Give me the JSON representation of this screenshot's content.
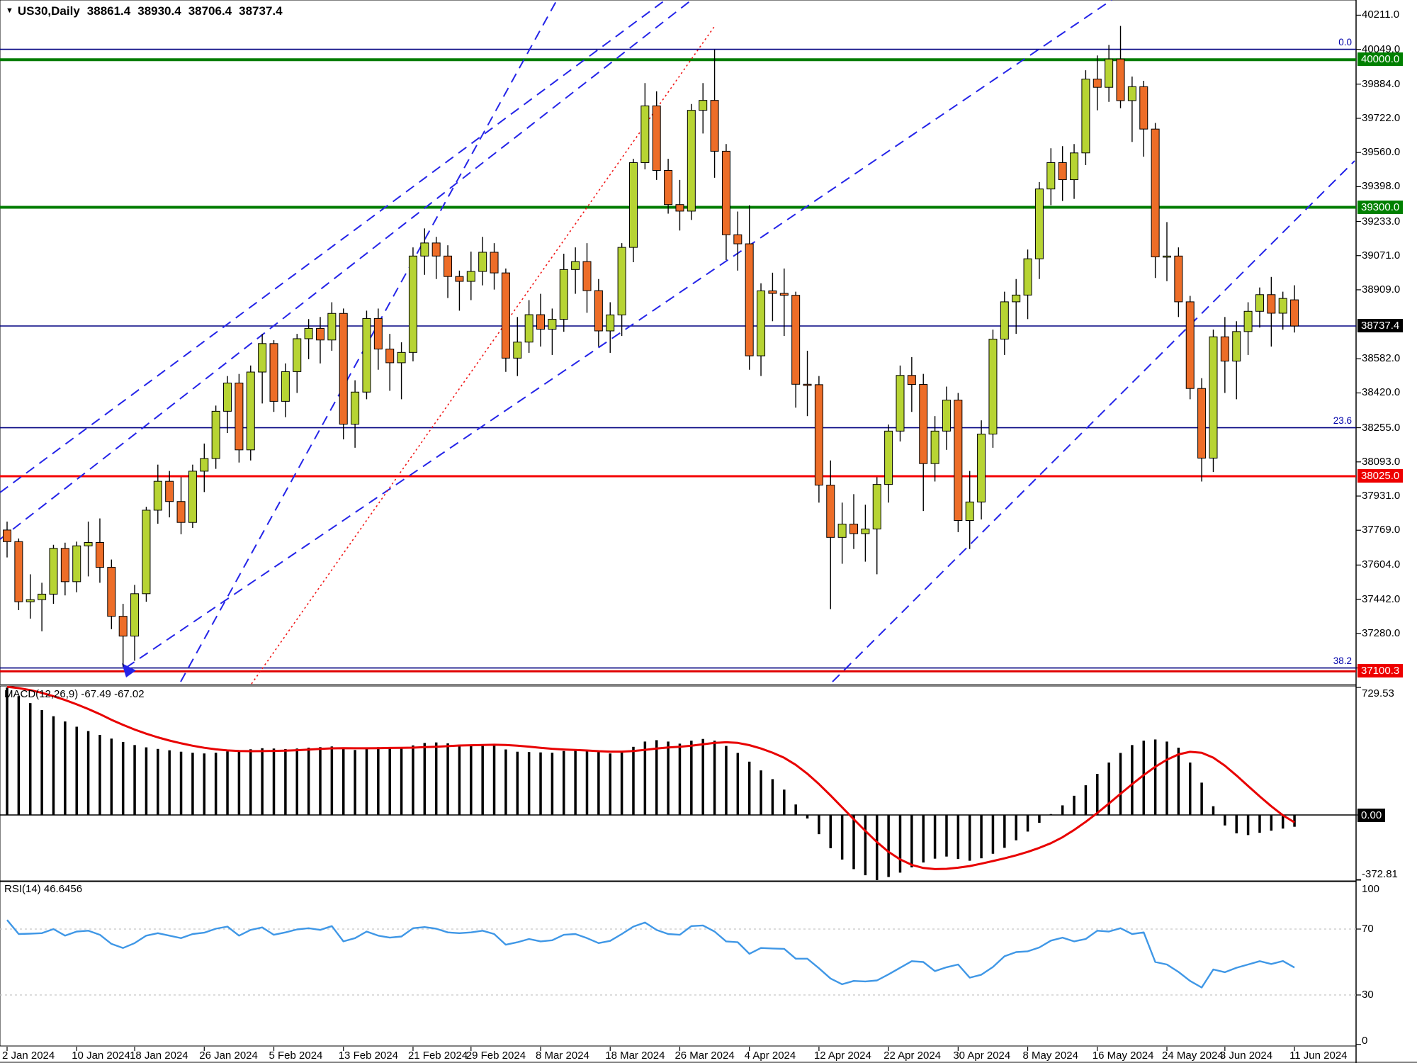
{
  "header": {
    "symbol": "US30,Daily",
    "open": "38861.4",
    "high": "38930.4",
    "low": "38706.4",
    "close": "38737.4"
  },
  "indicators": {
    "macd_label": "MACD(12,26,9) -67.49 -67.02",
    "rsi_label": "RSI(14) 46.6456"
  },
  "colors": {
    "bull": "#b7d433",
    "bear": "#ed6d28",
    "wick": "#000000",
    "macd_hist": "#000000",
    "macd_signal": "#e80000",
    "rsi_line": "#3f97e6",
    "trend_blue": "#2424e8",
    "trend_red": "#f01414",
    "level_navy": "#000080",
    "level_green": "#007c00",
    "level_red": "#f40000",
    "grid_dash": "#c8c8c8"
  },
  "chart_data": {
    "type": "candlestick",
    "symbol": "US30",
    "timeframe": "Daily",
    "price_axis": {
      "ticks": [
        {
          "text": "40211.0",
          "price": 40211
        },
        {
          "text": "40049.0",
          "price": 40049
        },
        {
          "text": "39884.0",
          "price": 39884
        },
        {
          "text": "39722.0",
          "price": 39722
        },
        {
          "text": "39560.0",
          "price": 39560
        },
        {
          "text": "39398.0",
          "price": 39398
        },
        {
          "text": "39233.0",
          "price": 39233
        },
        {
          "text": "39071.0",
          "price": 39071
        },
        {
          "text": "38909.0",
          "price": 38909
        },
        {
          "text": "38582.0",
          "price": 38582
        },
        {
          "text": "38420.0",
          "price": 38420
        },
        {
          "text": "38255.0",
          "price": 38255
        },
        {
          "text": "38093.0",
          "price": 38093
        },
        {
          "text": "37931.0",
          "price": 37931
        },
        {
          "text": "37769.0",
          "price": 37769
        },
        {
          "text": "37604.0",
          "price": 37604
        },
        {
          "text": "37442.0",
          "price": 37442
        },
        {
          "text": "37280.0",
          "price": 37280
        },
        {
          "text": "37116.0",
          "price": 37116
        }
      ],
      "highlighted": [
        {
          "text": "40000.0",
          "price": 40000,
          "bg": "#008000"
        },
        {
          "text": "39300.0",
          "price": 39300,
          "bg": "#008000"
        },
        {
          "text": "38737.4",
          "price": 38737.4,
          "bg": "#000000"
        },
        {
          "text": "38025.0",
          "price": 38025,
          "bg": "#ee0000"
        },
        {
          "text": "37100.3",
          "price": 37100.3,
          "bg": "#ee0000"
        }
      ]
    },
    "levels": [
      {
        "price": 40049.4,
        "color": "#000080",
        "w": 1.6
      },
      {
        "price": 40000.0,
        "color": "#007c00",
        "w": 4
      },
      {
        "price": 39300.0,
        "color": "#007c00",
        "w": 4
      },
      {
        "price": 38737.4,
        "color": "#000080",
        "w": 1.6
      },
      {
        "price": 38255.0,
        "color": "#000080",
        "w": 1.6
      },
      {
        "price": 38025.0,
        "color": "#f40000",
        "w": 3
      },
      {
        "price": 37116.0,
        "color": "#000080",
        "w": 1.6
      },
      {
        "price": 37100.3,
        "color": "#e00000",
        "w": 3
      }
    ],
    "fib_labels": [
      {
        "text": "0.0",
        "price": 40049.4
      },
      {
        "text": "23.6",
        "price": 38255.0
      },
      {
        "text": "38.2",
        "price": 37116.0
      }
    ],
    "trend_lines_blue_dashed": [
      [
        0,
        761,
        976,
        0
      ],
      [
        0,
        695,
        939,
        0
      ],
      [
        255,
        962,
        786,
        0
      ],
      [
        178,
        942,
        1569,
        0
      ],
      [
        1175,
        962,
        1912,
        227
      ]
    ],
    "trend_lines_red_dotted": [
      [
        355,
        965,
        1010,
        35
      ]
    ],
    "date_labels": [
      {
        "text": "2 Jan 2024",
        "i": 0
      },
      {
        "text": "10 Jan 2024",
        "i": 6
      },
      {
        "text": "18 Jan 2024",
        "i": 11
      },
      {
        "text": "26 Jan 2024",
        "i": 17
      },
      {
        "text": "5 Feb 2024",
        "i": 23
      },
      {
        "text": "13 Feb 2024",
        "i": 29
      },
      {
        "text": "21 Feb 2024",
        "i": 35
      },
      {
        "text": "29 Feb 2024",
        "i": 40
      },
      {
        "text": "8 Mar 2024",
        "i": 46
      },
      {
        "text": "18 Mar 2024",
        "i": 52
      },
      {
        "text": "26 Mar 2024",
        "i": 58
      },
      {
        "text": "4 Apr 2024",
        "i": 64
      },
      {
        "text": "12 Apr 2024",
        "i": 70
      },
      {
        "text": "22 Apr 2024",
        "i": 76
      },
      {
        "text": "30 Apr 2024",
        "i": 82
      },
      {
        "text": "8 May 2024",
        "i": 88
      },
      {
        "text": "16 May 2024",
        "i": 94
      },
      {
        "text": "24 May 2024",
        "i": 100
      },
      {
        "text": "3 Jun 2024",
        "i": 105
      },
      {
        "text": "11 Jun 2024",
        "i": 111
      }
    ],
    "bars_ohlc": [
      [
        37770,
        37810,
        37640,
        37715
      ],
      [
        37715,
        37730,
        37390,
        37430
      ],
      [
        37430,
        37560,
        37350,
        37440
      ],
      [
        37440,
        37520,
        37290,
        37466
      ],
      [
        37466,
        37700,
        37420,
        37683
      ],
      [
        37683,
        37710,
        37460,
        37525
      ],
      [
        37525,
        37715,
        37475,
        37695
      ],
      [
        37695,
        37810,
        37550,
        37711
      ],
      [
        37711,
        37825,
        37520,
        37593
      ],
      [
        37593,
        37630,
        37300,
        37361
      ],
      [
        37361,
        37420,
        37122,
        37267
      ],
      [
        37267,
        37510,
        37150,
        37468
      ],
      [
        37468,
        37880,
        37430,
        37864
      ],
      [
        37864,
        38080,
        37800,
        38001
      ],
      [
        38001,
        38050,
        37830,
        37905
      ],
      [
        37905,
        38020,
        37750,
        37806
      ],
      [
        37806,
        38080,
        37780,
        38049
      ],
      [
        38049,
        38180,
        37950,
        38109
      ],
      [
        38109,
        38360,
        38060,
        38333
      ],
      [
        38333,
        38500,
        38230,
        38467
      ],
      [
        38467,
        38510,
        38090,
        38150
      ],
      [
        38150,
        38550,
        38100,
        38519
      ],
      [
        38519,
        38700,
        38370,
        38654
      ],
      [
        38654,
        38670,
        38330,
        38380
      ],
      [
        38380,
        38560,
        38305,
        38521
      ],
      [
        38521,
        38700,
        38420,
        38677
      ],
      [
        38677,
        38770,
        38580,
        38726
      ],
      [
        38726,
        38780,
        38560,
        38671
      ],
      [
        38671,
        38850,
        38620,
        38797
      ],
      [
        38797,
        38820,
        38200,
        38272
      ],
      [
        38272,
        38480,
        38160,
        38424
      ],
      [
        38424,
        38810,
        38390,
        38773
      ],
      [
        38773,
        38820,
        38530,
        38628
      ],
      [
        38628,
        38700,
        38430,
        38563
      ],
      [
        38563,
        38660,
        38390,
        38612
      ],
      [
        38612,
        39110,
        38570,
        39069
      ],
      [
        39069,
        39200,
        38980,
        39131
      ],
      [
        39131,
        39160,
        38960,
        39069
      ],
      [
        39069,
        39120,
        38870,
        38972
      ],
      [
        38972,
        39000,
        38810,
        38949
      ],
      [
        38949,
        39090,
        38860,
        38996
      ],
      [
        38996,
        39160,
        38930,
        39087
      ],
      [
        39087,
        39130,
        38910,
        38989
      ],
      [
        38989,
        39010,
        38520,
        38585
      ],
      [
        38585,
        38780,
        38500,
        38661
      ],
      [
        38661,
        38860,
        38610,
        38791
      ],
      [
        38791,
        38890,
        38640,
        38722
      ],
      [
        38722,
        38820,
        38600,
        38769
      ],
      [
        38769,
        39080,
        38710,
        39005
      ],
      [
        39005,
        39110,
        38890,
        39043
      ],
      [
        39043,
        39130,
        38800,
        38905
      ],
      [
        38905,
        38960,
        38640,
        38714
      ],
      [
        38714,
        38850,
        38610,
        38790
      ],
      [
        38790,
        39130,
        38690,
        39110
      ],
      [
        39110,
        39530,
        39040,
        39512
      ],
      [
        39512,
        39889,
        39480,
        39781
      ],
      [
        39781,
        39850,
        39430,
        39475
      ],
      [
        39475,
        39530,
        39270,
        39313
      ],
      [
        39313,
        39430,
        39190,
        39282
      ],
      [
        39282,
        39790,
        39240,
        39760
      ],
      [
        39760,
        39889,
        39650,
        39807
      ],
      [
        39807,
        40048,
        39440,
        39566
      ],
      [
        39566,
        39600,
        39050,
        39170
      ],
      [
        39170,
        39280,
        39000,
        39127
      ],
      [
        39127,
        39310,
        38530,
        38596
      ],
      [
        38596,
        38940,
        38500,
        38904
      ],
      [
        38904,
        38990,
        38760,
        38892
      ],
      [
        38892,
        39010,
        38690,
        38883
      ],
      [
        38883,
        38900,
        38350,
        38461
      ],
      [
        38461,
        38620,
        38310,
        38459
      ],
      [
        38459,
        38500,
        37900,
        37983
      ],
      [
        37983,
        38100,
        37395,
        37735
      ],
      [
        37735,
        37900,
        37610,
        37798
      ],
      [
        37798,
        37940,
        37680,
        37753
      ],
      [
        37753,
        37890,
        37620,
        37775
      ],
      [
        37775,
        38020,
        37560,
        37986
      ],
      [
        37986,
        38270,
        37900,
        38239
      ],
      [
        38239,
        38550,
        38190,
        38503
      ],
      [
        38503,
        38590,
        38330,
        38460
      ],
      [
        38460,
        38510,
        37860,
        38085
      ],
      [
        38085,
        38310,
        38000,
        38239
      ],
      [
        38239,
        38450,
        38150,
        38386
      ],
      [
        38386,
        38420,
        37760,
        37815
      ],
      [
        37815,
        38050,
        37680,
        37903
      ],
      [
        37903,
        38290,
        37820,
        38225
      ],
      [
        38225,
        38720,
        38160,
        38675
      ],
      [
        38675,
        38900,
        38600,
        38852
      ],
      [
        38852,
        38960,
        38700,
        38884
      ],
      [
        38884,
        39100,
        38770,
        39056
      ],
      [
        39056,
        39420,
        38960,
        39387
      ],
      [
        39387,
        39580,
        39310,
        39512
      ],
      [
        39512,
        39590,
        39330,
        39431
      ],
      [
        39431,
        39600,
        39340,
        39558
      ],
      [
        39558,
        39950,
        39500,
        39908
      ],
      [
        39908,
        40020,
        39760,
        39869
      ],
      [
        39869,
        40070,
        39800,
        40003
      ],
      [
        40003,
        40160,
        39770,
        39806
      ],
      [
        39806,
        39920,
        39610,
        39872
      ],
      [
        39872,
        39900,
        39540,
        39671
      ],
      [
        39671,
        39700,
        38965,
        39065
      ],
      [
        39065,
        39230,
        38950,
        39069
      ],
      [
        39069,
        39110,
        38780,
        38852
      ],
      [
        38852,
        38880,
        38390,
        38441
      ],
      [
        38441,
        38490,
        38000,
        38111
      ],
      [
        38111,
        38720,
        38045,
        38686
      ],
      [
        38686,
        38780,
        38420,
        38571
      ],
      [
        38571,
        38760,
        38390,
        38711
      ],
      [
        38711,
        38850,
        38600,
        38807
      ],
      [
        38807,
        38920,
        38730,
        38886
      ],
      [
        38886,
        38970,
        38640,
        38798
      ],
      [
        38798,
        38900,
        38720,
        38868
      ],
      [
        38861.4,
        38930.4,
        38706.4,
        38737.4
      ]
    ],
    "macd": {
      "params": "12,26,9",
      "current_main": -67.49,
      "current_signal": -67.02,
      "axis_ticks": [
        {
          "text": "729.53",
          "v": 729.53
        },
        {
          "text": "0.00",
          "v": 0,
          "bg": "#000000"
        },
        {
          "text": "-372.81",
          "v": -372.81
        }
      ],
      "signal_prepad": [
        748,
        744,
        740,
        736,
        732,
        728,
        724,
        720
      ],
      "main": [
        729.53,
        680,
        640,
        600,
        565,
        535,
        505,
        480,
        458,
        437,
        418,
        400,
        387,
        378,
        370,
        362,
        356,
        352,
        356,
        364,
        370,
        376,
        382,
        380,
        377,
        380,
        385,
        388,
        392,
        380,
        372,
        380,
        388,
        386,
        384,
        398,
        412,
        415,
        410,
        402,
        398,
        400,
        396,
        375,
        362,
        360,
        358,
        356,
        366,
        375,
        372,
        360,
        352,
        362,
        390,
        420,
        428,
        420,
        408,
        425,
        435,
        425,
        395,
        355,
        305,
        255,
        205,
        145,
        60,
        -20,
        -110,
        -190,
        -255,
        -310,
        -345,
        -372.81,
        -355,
        -330,
        -300,
        -272,
        -250,
        -238,
        -252,
        -262,
        -248,
        -222,
        -188,
        -145,
        -95,
        -45,
        5,
        55,
        110,
        170,
        235,
        300,
        355,
        400,
        425,
        432,
        420,
        385,
        300,
        185,
        50,
        -60,
        -105,
        -115,
        -102,
        -90,
        -78,
        -67.49
      ]
    },
    "rsi": {
      "period": 14,
      "current": 46.6456,
      "axis_ticks": [
        {
          "text": "100",
          "r": 100
        },
        {
          "text": "70",
          "r": 70
        },
        {
          "text": "30",
          "r": 30
        },
        {
          "text": "0",
          "r": 0
        }
      ],
      "guide_levels": [
        70,
        30
      ],
      "values": [
        75.5,
        67,
        67.2,
        67.5,
        70,
        66,
        68.5,
        69,
        66.5,
        61,
        58.5,
        61.5,
        66,
        67.5,
        66,
        64.5,
        67,
        67.8,
        70.2,
        71.5,
        66,
        69.5,
        71,
        66.5,
        68,
        69.8,
        70.5,
        69.5,
        71.8,
        62.5,
        64.5,
        68.5,
        66,
        64.8,
        65.5,
        70.5,
        71.2,
        70.2,
        68,
        67.5,
        68,
        69,
        67,
        60.5,
        62,
        64,
        62.5,
        63.2,
        66.5,
        67,
        64.5,
        61.5,
        62.8,
        67,
        71.5,
        74,
        69.5,
        67,
        66.5,
        71.8,
        72.2,
        68.5,
        62.5,
        62,
        55,
        58.5,
        58.2,
        58,
        52,
        52,
        46.2,
        40,
        36.5,
        38.5,
        38.2,
        38.8,
        42.5,
        46.5,
        50.5,
        50,
        44.5,
        46.8,
        48.5,
        40.5,
        42.3,
        47,
        53.5,
        56,
        56.5,
        58.8,
        63,
        64.8,
        62.5,
        64,
        69,
        68.5,
        70.5,
        67,
        68,
        50,
        48.5,
        44,
        38.5,
        34.5,
        45.5,
        43.8,
        46.5,
        48.5,
        50.5,
        48.8,
        50.6,
        46.6456
      ]
    }
  }
}
